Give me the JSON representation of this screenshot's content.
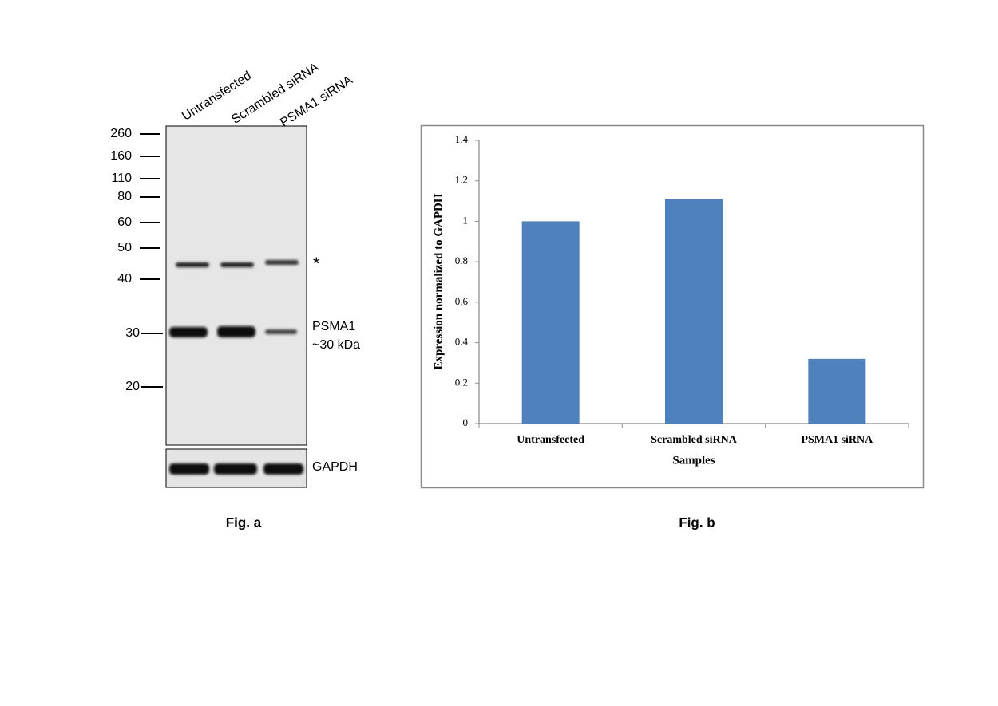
{
  "blot": {
    "lanes": [
      "Untransfected",
      "Scrambled siRNA",
      "PSMA1 siRNA"
    ],
    "markers": [
      260,
      160,
      110,
      80,
      60,
      50,
      40,
      30,
      20
    ],
    "annotations": {
      "star": "*",
      "target": "PSMA1",
      "size": "~30 kDa",
      "loading": "GAPDH"
    },
    "caption": "Fig. a"
  },
  "chart_data": {
    "type": "bar",
    "caption": "Fig. b",
    "x_label": "Samples",
    "y_label": "Expression normalized to  GAPDH",
    "categories": [
      "Untransfected",
      "Scrambled siRNA",
      "PSMA1 siRNA"
    ],
    "values": [
      1.0,
      1.11,
      0.32
    ],
    "color": "#4f81bd",
    "ylim": [
      0,
      1.4
    ],
    "yticks": [
      0,
      0.2,
      0.4,
      0.6,
      0.8,
      1,
      1.2,
      1.4
    ],
    "grid": false
  }
}
